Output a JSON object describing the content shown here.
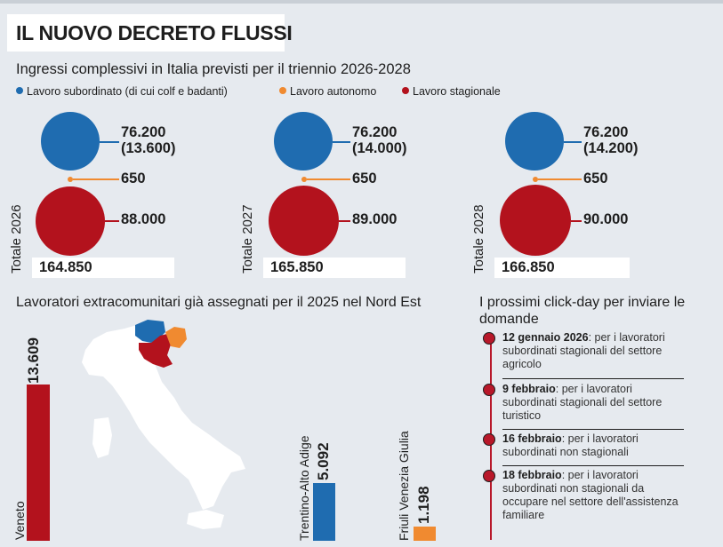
{
  "title": "IL NUOVO DECRETO FLUSSI",
  "subtitle": "Ingressi complessivi in Italia previsti per il triennio 2026-2028",
  "legend": [
    {
      "label": "Lavoro subordinato (di cui colf e badanti)",
      "color": "#1f6cb0"
    },
    {
      "label": "Lavoro autonomo",
      "color": "#f08a30"
    },
    {
      "label": "Lavoro stagionale",
      "color": "#b3121d"
    }
  ],
  "colors": {
    "blue": "#1f6cb0",
    "orange": "#f08a30",
    "red": "#b3121d",
    "timeline": "#b8182a"
  },
  "chart_data": [
    {
      "type": "bubble",
      "title": "Ingressi complessivi in Italia previsti per il triennio 2026-2028",
      "categories": [
        "2026",
        "2027",
        "2028"
      ],
      "series": [
        {
          "name": "Lavoro subordinato (di cui colf e badanti)",
          "values": [
            76200,
            76200,
            76200
          ]
        },
        {
          "name": "di cui colf e badanti",
          "values": [
            13600,
            14000,
            14200
          ]
        },
        {
          "name": "Lavoro autonomo",
          "values": [
            650,
            650,
            650
          ]
        },
        {
          "name": "Lavoro stagionale",
          "values": [
            88000,
            89000,
            90000
          ]
        }
      ],
      "totals": [
        164850,
        165850,
        166850
      ],
      "years": [
        {
          "total_label": "Totale 2026",
          "subordinato": "76.200",
          "colf": "(13.600)",
          "autonomo": "650",
          "stagionale": "88.000",
          "total": "164.850"
        },
        {
          "total_label": "Totale 2027",
          "subordinato": "76.200",
          "colf": "(14.000)",
          "autonomo": "650",
          "stagionale": "89.000",
          "total": "165.850"
        },
        {
          "total_label": "Totale 2028",
          "subordinato": "76.200",
          "colf": "(14.200)",
          "autonomo": "650",
          "stagionale": "90.000",
          "total": "166.850"
        }
      ]
    },
    {
      "type": "bar",
      "title": "Lavoratori extracomunitari già assegnati per il 2025 nel Nord Est",
      "categories": [
        "Veneto",
        "Trentino-Alto Adige",
        "Friuli Venezia Giulia"
      ],
      "values": [
        13609,
        5092,
        1198
      ],
      "value_labels": [
        "13.609",
        "5.092",
        "1.198"
      ],
      "colors": [
        "#b3121d",
        "#1f6cb0",
        "#f08a30"
      ]
    }
  ],
  "timeline": {
    "title": "I prossimi click-day per inviare le domande",
    "events": [
      {
        "date": "12 gennaio 2026",
        "text": ": per i lavoratori subordinati stagionali del settore agricolo"
      },
      {
        "date": "9 febbraio",
        "text": ": per i lavoratori subordinati stagionali del settore turistico"
      },
      {
        "date": "16 febbraio",
        "text": ": per i lavoratori subordinati non stagionali"
      },
      {
        "date": "18 febbraio",
        "text": ": per i lavoratori subordinati non stagionali da occupare nel settore dell'assistenza familiare"
      }
    ]
  }
}
